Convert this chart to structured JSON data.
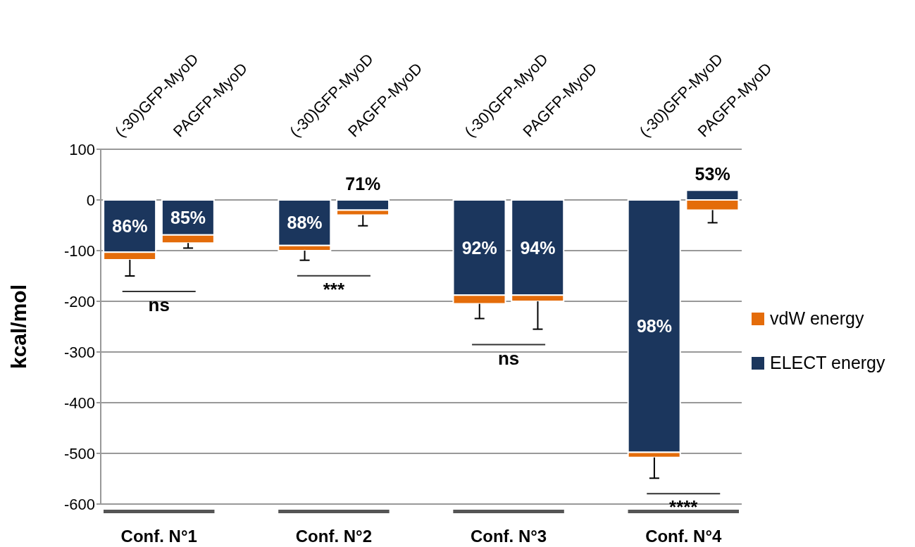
{
  "chart_data": {
    "type": "bar",
    "stacked": true,
    "ylabel": "kcal/mol",
    "categories": [
      "(-30)GFP-MyoD",
      "PAGFP-MyoD",
      "(-30)GFP-MyoD",
      "PAGFP-MyoD",
      "(-30)GFP-MyoD",
      "PAGFP-MyoD",
      "(-30)GFP-MyoD",
      "PAGFP-MyoD"
    ],
    "series": [
      {
        "name": "ELECT energy",
        "color": "#1b365d",
        "values": [
          -103,
          -69,
          -90,
          -20,
          -188,
          -188,
          -498,
          19
        ]
      },
      {
        "name": "vdW energy",
        "color": "#e46c0a",
        "values": [
          -15,
          -16,
          -10,
          -10,
          -17,
          -12,
          -10,
          -20
        ],
        "errors": [
          [
            -150,
            -118
          ],
          [
            -95,
            -85
          ],
          [
            -119,
            -100
          ],
          [
            -51,
            -30
          ],
          [
            -234,
            -205
          ],
          [
            -255,
            -200
          ],
          [
            -549,
            -508
          ],
          [
            -45,
            -20
          ]
        ]
      }
    ],
    "ylim": [
      -600,
      100
    ],
    "yticks": [
      100,
      0,
      -100,
      -200,
      -300,
      -400,
      -500,
      -600
    ],
    "grid": "y",
    "legend": "right",
    "annotations": [
      "86%",
      "85%",
      "88%",
      "71%",
      "92%",
      "94%",
      "98%",
      "53%",
      "Conf. N°1",
      "Conf. N°2",
      "Conf. N°3",
      "Conf. N°4",
      "ns",
      "***",
      "ns",
      "****"
    ]
  }
}
